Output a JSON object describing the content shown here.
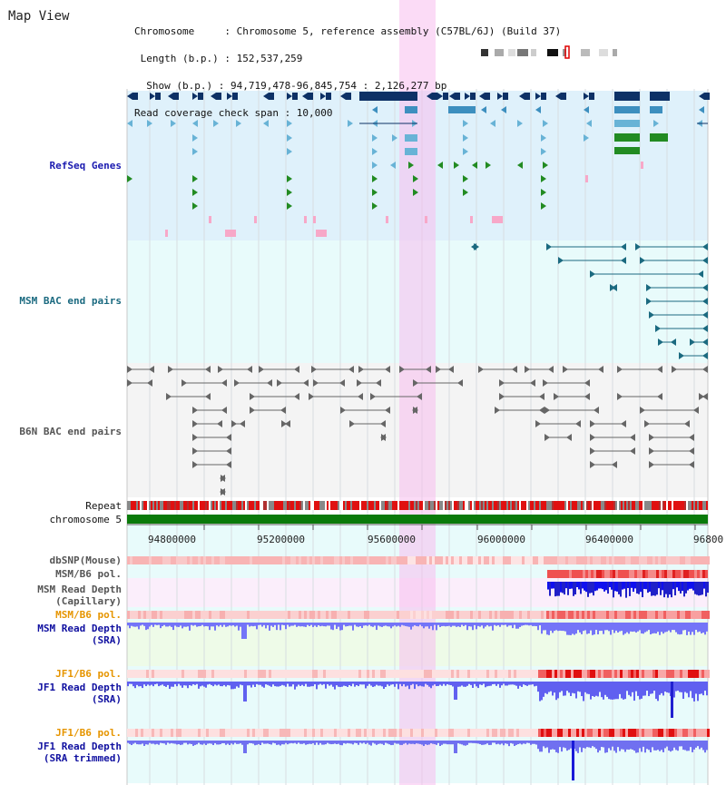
{
  "header": {
    "title": "Map View",
    "info_lines": [
      "Chromosome     : Chromosome 5, reference assembly (C57BL/6J) (Build 37)",
      " Length (b.p.) : 152,537,259",
      "  Show (b.p.) : 94,719,478-96,845,754 : 2,126,277 bp",
      "Read coverage check span : 10,000"
    ]
  },
  "tracks": {
    "refseq": "RefSeq Genes",
    "msm_bac": "MSM BAC end pairs",
    "b6n_bac": "B6N BAC end pairs",
    "repeat": "Repeat",
    "chromosome": "chromosome 5",
    "dbsnp": "dbSNP(Mouse)",
    "msm_pol": "MSM/B6 pol.",
    "msm_depth_cap_1": "MSM Read Depth",
    "msm_depth_cap_2": "(Capillary)",
    "msm_pol2": "MSM/B6 pol.",
    "msm_depth_sra_1": "MSM Read Depth",
    "msm_depth_sra_2": "(SRA)",
    "jf1_pol": "JF1/B6 pol.",
    "jf1_depth_1": "JF1 Read Depth",
    "jf1_depth_2": "(SRA)",
    "jf1_pol2": "JF1/B6 pol.",
    "jf1_trim_1": "JF1 Read Depth",
    "jf1_trim_2": "(SRA trimmed)"
  },
  "axis": {
    "ticks": [
      "94800000",
      "95200000",
      "95600000",
      "96000000",
      "96400000",
      "96800"
    ]
  },
  "colors": {
    "refseq_label": "#1b1bb0",
    "msm_bac_label": "#1b6a80",
    "b6n_label": "#555555",
    "orange_label": "#e69500",
    "blue_label": "#1010a0",
    "highlight": "#f7d0f0"
  }
}
